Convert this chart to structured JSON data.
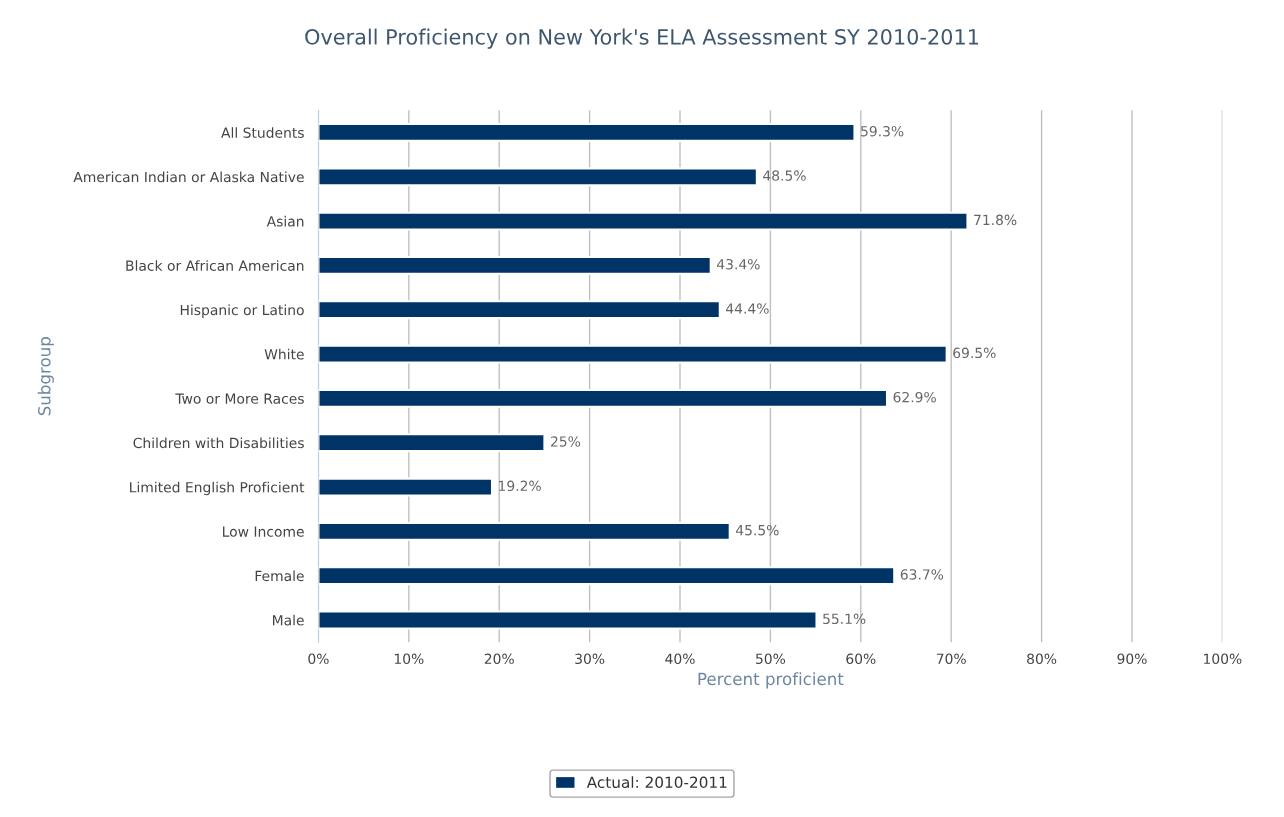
{
  "chart_data": {
    "type": "bar",
    "orientation": "horizontal",
    "title": "Overall Proficiency on New York's ELA Assessment SY 2010-2011",
    "xlabel": "Percent proficient",
    "ylabel": "Subgroup",
    "categories": [
      "All Students",
      "American Indian or Alaska Native",
      "Asian",
      "Black or African American",
      "Hispanic or Latino",
      "White",
      "Two or More Races",
      "Children with Disabilities",
      "Limited English Proficient",
      "Low Income",
      "Female",
      "Male"
    ],
    "series": [
      {
        "name": "Actual: 2010-2011",
        "color": "#003366",
        "values": [
          59.3,
          48.5,
          71.8,
          43.4,
          44.4,
          69.5,
          62.9,
          25,
          19.2,
          45.5,
          63.7,
          55.1
        ],
        "value_labels": [
          "59.3%",
          "48.5%",
          "71.8%",
          "43.4%",
          "44.4%",
          "69.5%",
          "62.9%",
          "25%",
          "19.2%",
          "45.5%",
          "63.7%",
          "55.1%"
        ]
      }
    ],
    "xlim": [
      0,
      100
    ],
    "xticks": [
      {
        "value": 0,
        "label": "0%"
      },
      {
        "value": 10,
        "label": "10%"
      },
      {
        "value": 20,
        "label": "20%"
      },
      {
        "value": 30,
        "label": "30%"
      },
      {
        "value": 40,
        "label": "40%"
      },
      {
        "value": 50,
        "label": "50%"
      },
      {
        "value": 60,
        "label": "60%"
      },
      {
        "value": 70,
        "label": "70%"
      },
      {
        "value": 80,
        "label": "80%"
      },
      {
        "value": 90,
        "label": "90%"
      },
      {
        "value": 100,
        "label": "100%"
      }
    ],
    "grid": "x",
    "legend": "bottom"
  }
}
